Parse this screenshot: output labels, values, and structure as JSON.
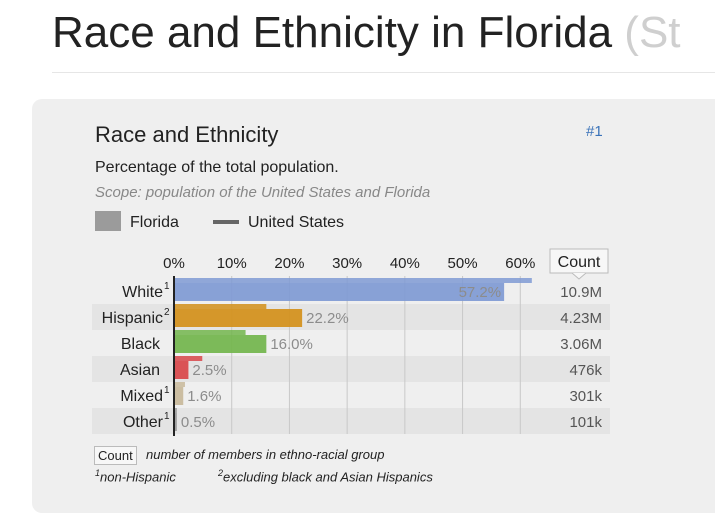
{
  "page": {
    "title": "Race and Ethnicity in Florida",
    "title_suffix": "(St"
  },
  "card": {
    "title": "Race and Ethnicity",
    "rank": "#1",
    "subtitle": "Percentage of the total population.",
    "scope": "Scope: population of the United States and Florida",
    "legend": {
      "florida": "Florida",
      "us": "United States"
    },
    "count_header": "Count",
    "count_box": "Count",
    "count_note": "number of members in ethno-racial group",
    "footnote1_mark": "1",
    "footnote1": "non-Hispanic",
    "footnote2_mark": "2",
    "footnote2": "excluding black and Asian Hispanics"
  },
  "colors": {
    "white": "#7f9ad4",
    "hispanic": "#d4901a",
    "black": "#72b54c",
    "asian": "#d9464a",
    "mixed": "#c8b89a",
    "other": "#9a9a9a",
    "us_line": "#666666",
    "value_text": "#8c8c8c"
  },
  "chart_data": {
    "type": "bar",
    "orientation": "horizontal",
    "xlim": [
      0,
      70
    ],
    "ticks": [
      "0%",
      "10%",
      "20%",
      "30%",
      "40%",
      "50%",
      "60%"
    ],
    "tick_values": [
      0,
      10,
      20,
      30,
      40,
      50,
      60
    ],
    "categories": [
      "White",
      "Hispanic",
      "Black",
      "Asian",
      "Mixed",
      "Other"
    ],
    "category_sups": [
      "1",
      "2",
      "",
      "",
      "1",
      "1"
    ],
    "series": [
      {
        "name": "Florida",
        "values": [
          57.2,
          22.2,
          16.0,
          2.5,
          1.6,
          0.5
        ],
        "labels": [
          "57.2%",
          "22.2%",
          "16.0%",
          "2.5%",
          "1.6%",
          "0.5%"
        ],
        "counts": [
          "10.9M",
          "4.23M",
          "3.06M",
          "476k",
          "301k",
          "101k"
        ]
      },
      {
        "name": "United States",
        "values": [
          62.0,
          16.0,
          12.4,
          4.9,
          1.9,
          0.5
        ]
      }
    ],
    "legend_position": "top-left",
    "grid": true
  }
}
